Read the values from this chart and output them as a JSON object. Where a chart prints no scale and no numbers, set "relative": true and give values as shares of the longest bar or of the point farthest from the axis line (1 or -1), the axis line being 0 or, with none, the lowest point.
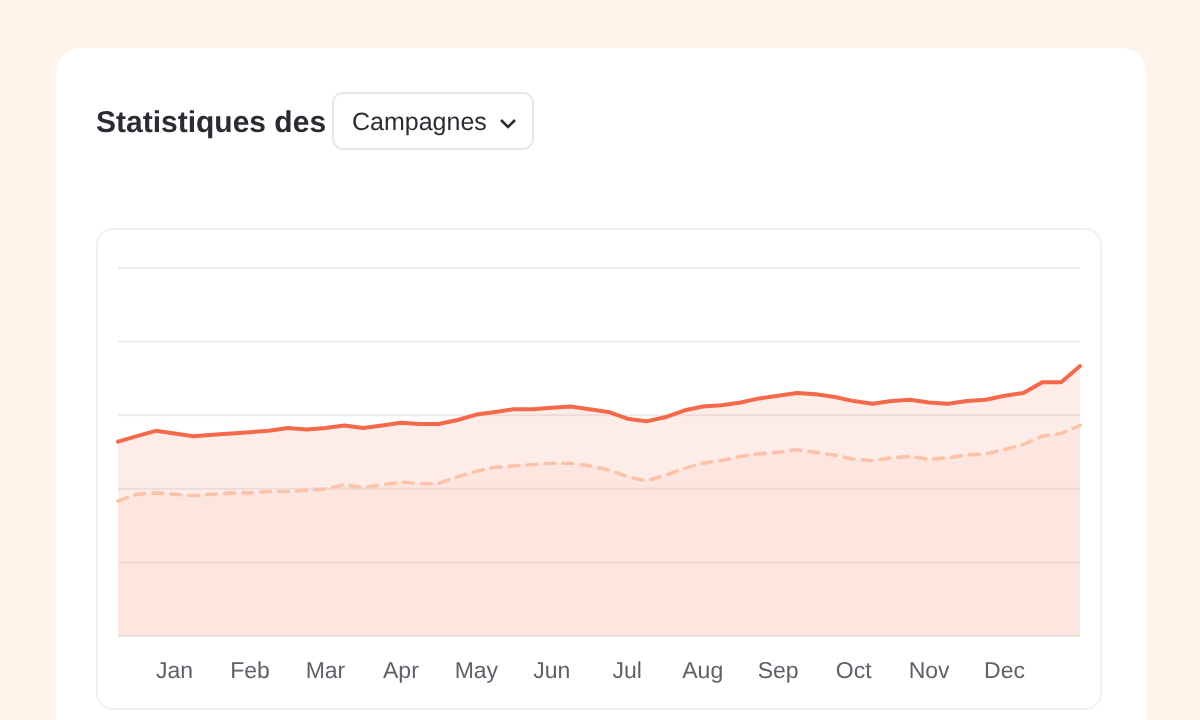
{
  "chart_data": {
    "type": "area",
    "title": "Statistiques des",
    "subtitle": "Campagnes",
    "relative": true,
    "grid": "y",
    "tick_labels": "x",
    "categories": [
      null,
      null,
      null,
      "Jan",
      null,
      null,
      null,
      "Feb",
      null,
      null,
      null,
      "Mar",
      null,
      null,
      null,
      "Apr",
      null,
      null,
      null,
      "May",
      null,
      null,
      null,
      "Jun",
      null,
      null,
      null,
      "Jul",
      null,
      null,
      null,
      "Aug",
      null,
      null,
      null,
      "Sep",
      null,
      null,
      null,
      "Oct",
      null,
      null,
      null,
      "Nov",
      null,
      null,
      null,
      "Dec",
      null,
      null,
      null,
      null
    ],
    "series": [
      {
        "color": "#f4694a",
        "line_style": "solid",
        "values": [
          0.72,
          0.74,
          0.76,
          0.75,
          0.74,
          0.745,
          0.75,
          0.755,
          0.76,
          0.77,
          0.765,
          0.77,
          0.78,
          0.77,
          0.78,
          0.79,
          0.785,
          0.785,
          0.8,
          0.82,
          0.83,
          0.84,
          0.84,
          0.845,
          0.85,
          0.84,
          0.83,
          0.805,
          0.795,
          0.81,
          0.835,
          0.85,
          0.855,
          0.865,
          0.88,
          0.89,
          0.9,
          0.895,
          0.885,
          0.87,
          0.86,
          0.87,
          0.875,
          0.865,
          0.86,
          0.87,
          0.875,
          0.89,
          0.9,
          0.94,
          0.94,
          1
        ]
      },
      {
        "color": "#fcc3a8",
        "line_style": "dashed",
        "values": [
          0.5,
          0.525,
          0.53,
          0.525,
          0.52,
          0.525,
          0.53,
          0.53,
          0.535,
          0.535,
          0.54,
          0.545,
          0.56,
          0.55,
          0.56,
          0.57,
          0.565,
          0.565,
          0.59,
          0.61,
          0.625,
          0.63,
          0.635,
          0.64,
          0.64,
          0.63,
          0.615,
          0.59,
          0.575,
          0.595,
          0.62,
          0.64,
          0.65,
          0.665,
          0.675,
          0.68,
          0.69,
          0.68,
          0.67,
          0.655,
          0.65,
          0.66,
          0.665,
          0.655,
          0.66,
          0.67,
          0.675,
          0.69,
          0.71,
          0.74,
          0.75,
          0.78
        ]
      }
    ]
  }
}
